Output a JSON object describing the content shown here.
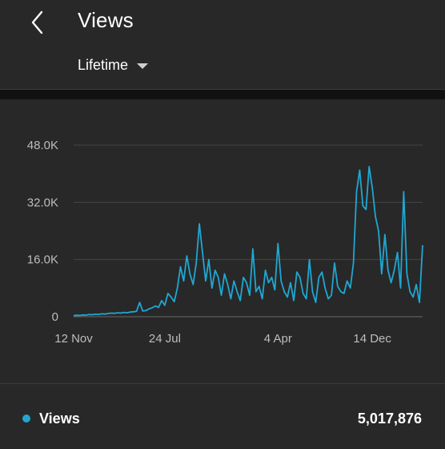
{
  "header": {
    "back_icon": "chevron-left-icon",
    "title": "Views",
    "period": "Lifetime",
    "period_icon": "caret-down-icon"
  },
  "chart_data": {
    "type": "line",
    "title": "",
    "xlabel": "",
    "ylabel": "",
    "ylim": [
      0,
      48000
    ],
    "y_ticks": [
      "48.0K",
      "32.0K",
      "16.0K",
      "0"
    ],
    "y_tick_values": [
      48000,
      32000,
      16000,
      0
    ],
    "x_tick_labels": [
      "12 Nov",
      "24 Jul",
      "4 Apr",
      "14 Dec"
    ],
    "x_tick_index": [
      0,
      29,
      65,
      95
    ],
    "grid": true,
    "color": "#1fa7d2",
    "series": [
      {
        "name": "Views",
        "values": [
          300,
          400,
          350,
          500,
          450,
          600,
          550,
          700,
          650,
          800,
          750,
          900,
          1000,
          950,
          1100,
          1000,
          1200,
          1100,
          1300,
          1400,
          1500,
          4000,
          1600,
          1700,
          2200,
          2500,
          3000,
          2600,
          4500,
          3200,
          6500,
          5500,
          4200,
          8000,
          14000,
          10000,
          17000,
          12000,
          9000,
          15000,
          26000,
          18000,
          10000,
          16000,
          8000,
          13000,
          11000,
          6000,
          12000,
          9000,
          5000,
          10000,
          7000,
          4500,
          11000,
          9500,
          6000,
          19000,
          7000,
          8500,
          5000,
          13000,
          9500,
          11000,
          7500,
          20500,
          10000,
          7000,
          5500,
          9500,
          4500,
          12500,
          11000,
          6500,
          5000,
          16000,
          7000,
          4000,
          11000,
          12500,
          8000,
          5000,
          6000,
          15000,
          8500,
          7000,
          6500,
          10000,
          8000,
          15000,
          35000,
          41000,
          31000,
          30000,
          42000,
          36000,
          28000,
          24000,
          12000,
          23000,
          13000,
          9500,
          13000,
          18000,
          8000,
          35000,
          12000,
          7000,
          5500,
          9000,
          4000,
          20000
        ]
      }
    ]
  },
  "legend": {
    "label": "Views",
    "total": "5,017,876",
    "dot_color": "#1fa7d2"
  }
}
